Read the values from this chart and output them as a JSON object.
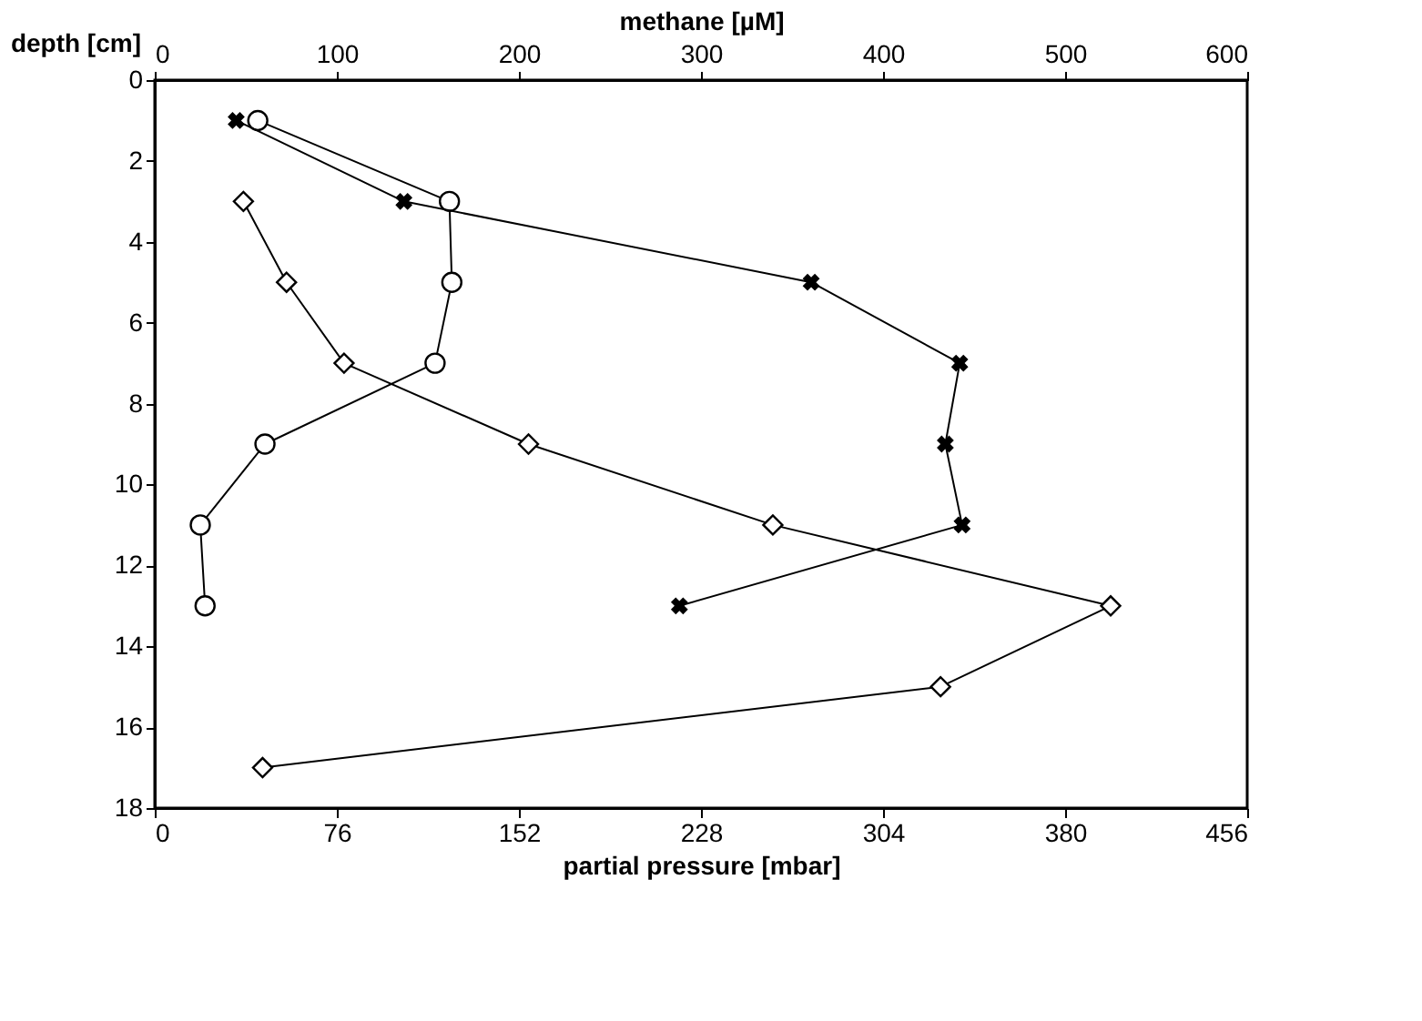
{
  "chart_data": {
    "type": "line",
    "xlabel": "partial pressure [mbar]",
    "x2label": "methane [µM]",
    "ylabel": "depth [cm]",
    "xlim": [
      0,
      456
    ],
    "xticks": [
      0,
      76,
      152,
      228,
      304,
      380,
      456
    ],
    "x2lim": [
      0,
      600
    ],
    "x2ticks": [
      0,
      100,
      200,
      300,
      400,
      500,
      600
    ],
    "ylim": [
      18,
      0
    ],
    "yticks": [
      0,
      2,
      4,
      6,
      8,
      10,
      12,
      14,
      16,
      18
    ],
    "grid": false,
    "line_style": "solid",
    "series": [
      {
        "color": "#000000",
        "marker": "circle",
        "x": [
          43,
          123,
          124,
          117,
          46,
          19,
          21
        ],
        "values": [
          1,
          3,
          5,
          7,
          9,
          11,
          13
        ]
      },
      {
        "color": "#000000",
        "marker": "cross",
        "x": [
          34,
          104,
          274,
          336,
          330,
          337,
          219
        ],
        "values": [
          1,
          3,
          5,
          7,
          9,
          11,
          13
        ]
      },
      {
        "color": "#000000",
        "marker": "diamond",
        "x": [
          37,
          55,
          79,
          156,
          258,
          399,
          328,
          45
        ],
        "values": [
          3,
          5,
          7,
          9,
          11,
          13,
          15,
          17
        ]
      }
    ]
  }
}
